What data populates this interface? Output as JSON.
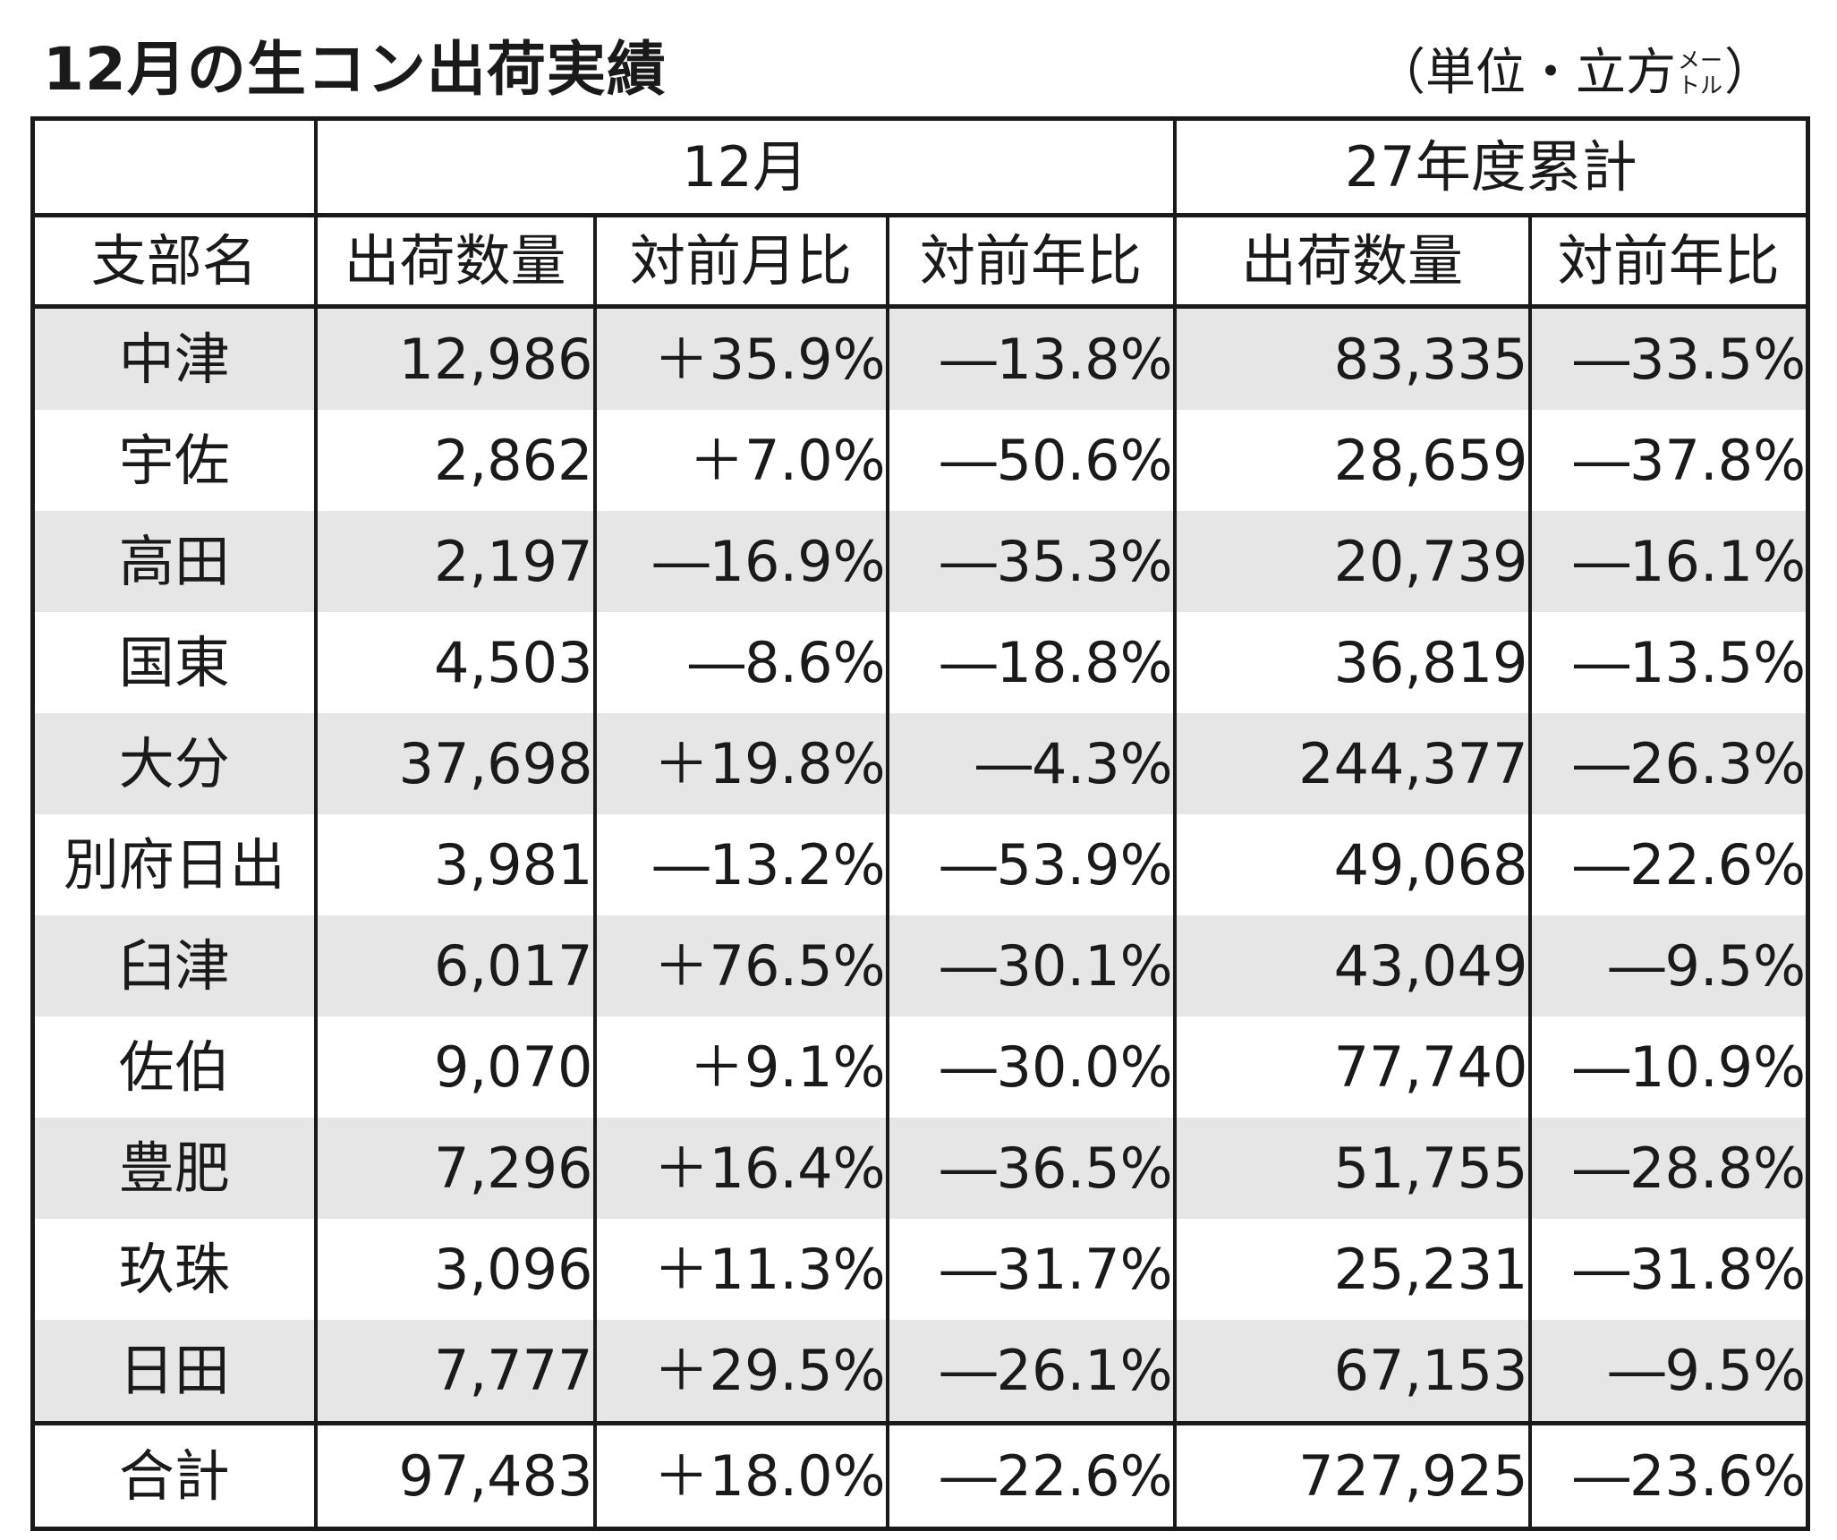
{
  "title": "12月の生コン出荷実績",
  "unit": {
    "prefix": "（単位・立方",
    "meter_top": "メー",
    "meter_bottom": "トル",
    "suffix": "）"
  },
  "header": {
    "month_group": "12月",
    "cumulative_group": "27年度累計",
    "columns": [
      "支部名",
      "出荷数量",
      "対前月比",
      "対前年比",
      "出荷数量",
      "対前年比"
    ]
  },
  "rows": [
    [
      "中津",
      "12,986",
      "＋35.9%",
      "―13.8%",
      "83,335",
      "―33.5%"
    ],
    [
      "宇佐",
      "2,862",
      "＋7.0%",
      "―50.6%",
      "28,659",
      "―37.8%"
    ],
    [
      "高田",
      "2,197",
      "―16.9%",
      "―35.3%",
      "20,739",
      "―16.1%"
    ],
    [
      "国東",
      "4,503",
      "―8.6%",
      "―18.8%",
      "36,819",
      "―13.5%"
    ],
    [
      "大分",
      "37,698",
      "＋19.8%",
      "―4.3%",
      "244,377",
      "―26.3%"
    ],
    [
      "別府日出",
      "3,981",
      "―13.2%",
      "―53.9%",
      "49,068",
      "―22.6%"
    ],
    [
      "臼津",
      "6,017",
      "＋76.5%",
      "―30.1%",
      "43,049",
      "―9.5%"
    ],
    [
      "佐伯",
      "9,070",
      "＋9.1%",
      "―30.0%",
      "77,740",
      "―10.9%"
    ],
    [
      "豊肥",
      "7,296",
      "＋16.4%",
      "―36.5%",
      "51,755",
      "―28.8%"
    ],
    [
      "玖珠",
      "3,096",
      "＋11.3%",
      "―31.7%",
      "25,231",
      "―31.8%"
    ],
    [
      "日田",
      "7,777",
      "＋29.5%",
      "―26.1%",
      "67,153",
      "―9.5%"
    ]
  ],
  "total": [
    "合計",
    "97,483",
    "＋18.0%",
    "―22.6%",
    "727,925",
    "―23.6%"
  ]
}
